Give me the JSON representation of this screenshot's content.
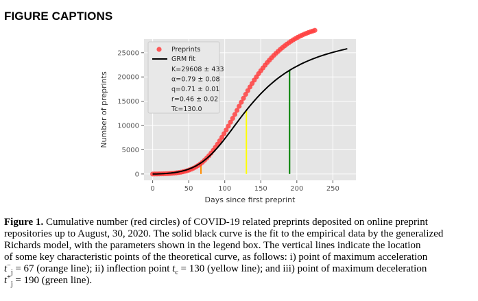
{
  "section_title": "FIGURE CAPTIONS",
  "chart_data": {
    "type": "scatter",
    "xlabel": "Days since first preprint",
    "ylabel": "Number of preprints",
    "xlim": [
      -12,
      282
    ],
    "ylim": [
      -1300,
      27800
    ],
    "x_ticks": [
      0,
      50,
      100,
      150,
      200,
      250
    ],
    "y_ticks": [
      0,
      5000,
      10000,
      15000,
      20000,
      25000
    ],
    "grid": true,
    "legend_position": "top-left",
    "legend": {
      "series": [
        {
          "name": "Preprints",
          "marker": "circle",
          "color": "#ff5050"
        },
        {
          "name": "GRM fit",
          "marker": "line",
          "color": "#000000"
        }
      ],
      "params": [
        "K=29608 ± 433",
        "α=0.79 ± 0.08",
        "q=0.71 ± 0.01",
        "r=0.46 ± 0.02",
        "Tc=130.0"
      ]
    },
    "series": [
      {
        "name": "Preprints",
        "x": [
          0,
          3,
          6,
          9,
          12,
          15,
          18,
          21,
          24,
          27,
          30,
          33,
          36,
          39,
          42,
          45,
          48,
          51,
          54,
          57,
          60,
          63,
          66,
          69,
          72,
          75,
          78,
          81,
          84,
          87,
          90,
          93,
          96,
          99,
          102,
          105,
          108,
          111,
          114,
          117,
          120,
          123,
          126,
          129,
          132,
          135,
          138,
          141,
          144,
          147,
          150,
          153,
          156,
          159,
          162,
          165,
          168,
          171,
          174,
          177,
          180,
          183,
          186,
          189,
          192,
          195,
          198,
          201,
          204,
          207,
          210,
          213,
          216,
          219,
          222,
          225
        ],
        "y": [
          0,
          5,
          10,
          20,
          30,
          40,
          60,
          80,
          110,
          150,
          190,
          240,
          300,
          370,
          450,
          560,
          690,
          840,
          1020,
          1230,
          1470,
          1740,
          2060,
          2420,
          2830,
          3280,
          3760,
          4300,
          4880,
          5490,
          6140,
          6840,
          7560,
          8310,
          9070,
          9870,
          10680,
          11470,
          12280,
          13110,
          13960,
          14790,
          15610,
          16410,
          17180,
          17930,
          18660,
          19350,
          20020,
          20670,
          21290,
          21850,
          22420,
          22960,
          23470,
          23960,
          24430,
          24860,
          25260,
          25670,
          26040,
          26400,
          26750,
          27050,
          27350,
          27650,
          27900,
          28150,
          28380,
          28590,
          28790,
          28970,
          29150,
          29300,
          29450,
          29600
        ]
      },
      {
        "name": "GRM fit",
        "x": [
          0,
          5,
          10,
          15,
          20,
          25,
          30,
          35,
          40,
          45,
          50,
          55,
          60,
          65,
          70,
          75,
          80,
          85,
          90,
          95,
          100,
          105,
          110,
          115,
          120,
          125,
          130,
          135,
          140,
          145,
          150,
          155,
          160,
          165,
          170,
          175,
          180,
          185,
          190,
          195,
          200,
          205,
          210,
          215,
          220,
          225,
          230,
          235,
          240,
          245,
          250,
          255,
          260,
          265,
          270
        ],
        "y": [
          0,
          15,
          40,
          80,
          130,
          200,
          290,
          410,
          560,
          760,
          1000,
          1300,
          1660,
          2100,
          2610,
          3200,
          3870,
          4620,
          5440,
          6320,
          7250,
          8220,
          9210,
          10210,
          11200,
          12180,
          13130,
          14040,
          14920,
          15750,
          16550,
          17290,
          18000,
          18660,
          19280,
          19860,
          20400,
          20900,
          21370,
          21810,
          22210,
          22600,
          22950,
          23280,
          23590,
          23880,
          24150,
          24400,
          24640,
          24860,
          25070,
          25270,
          25460,
          25640,
          25810
        ]
      }
    ],
    "vertical_lines": [
      {
        "x": 67,
        "color": "#ff8c00",
        "label": "point of maximum acceleration"
      },
      {
        "x": 130,
        "color": "#ffff00",
        "label": "inflection point"
      },
      {
        "x": 190,
        "color": "#008000",
        "label": "point of maximum deceleration"
      }
    ]
  },
  "caption": {
    "label": "Figure 1.",
    "line1": "Cumulative number (red circles) of COVID-19 related preprints deposited on online preprint",
    "line2": "repositories up to August, 30, 2020. The solid black curve is the fit to the empirical data by the generalized",
    "line3": "Richards model, with the parameters shown in the legend box. The vertical lines indicate the location",
    "line4": "of some key characteristic points of the theoretical curve, as follows: i) point of maximum acceleration",
    "acc_sym": "t",
    "acc_sup": "−",
    "acc_sub": "j",
    "acc_eq": " = 67 (orange line); ii) inflection point ",
    "infl_sym": "t",
    "infl_sub": "c",
    "infl_eq": " = 130 (yellow line); and iii) point of maximum deceleration",
    "dec_sym": "t",
    "dec_sup": "+",
    "dec_sub": "j",
    "dec_eq": " = 190 (green line)."
  }
}
